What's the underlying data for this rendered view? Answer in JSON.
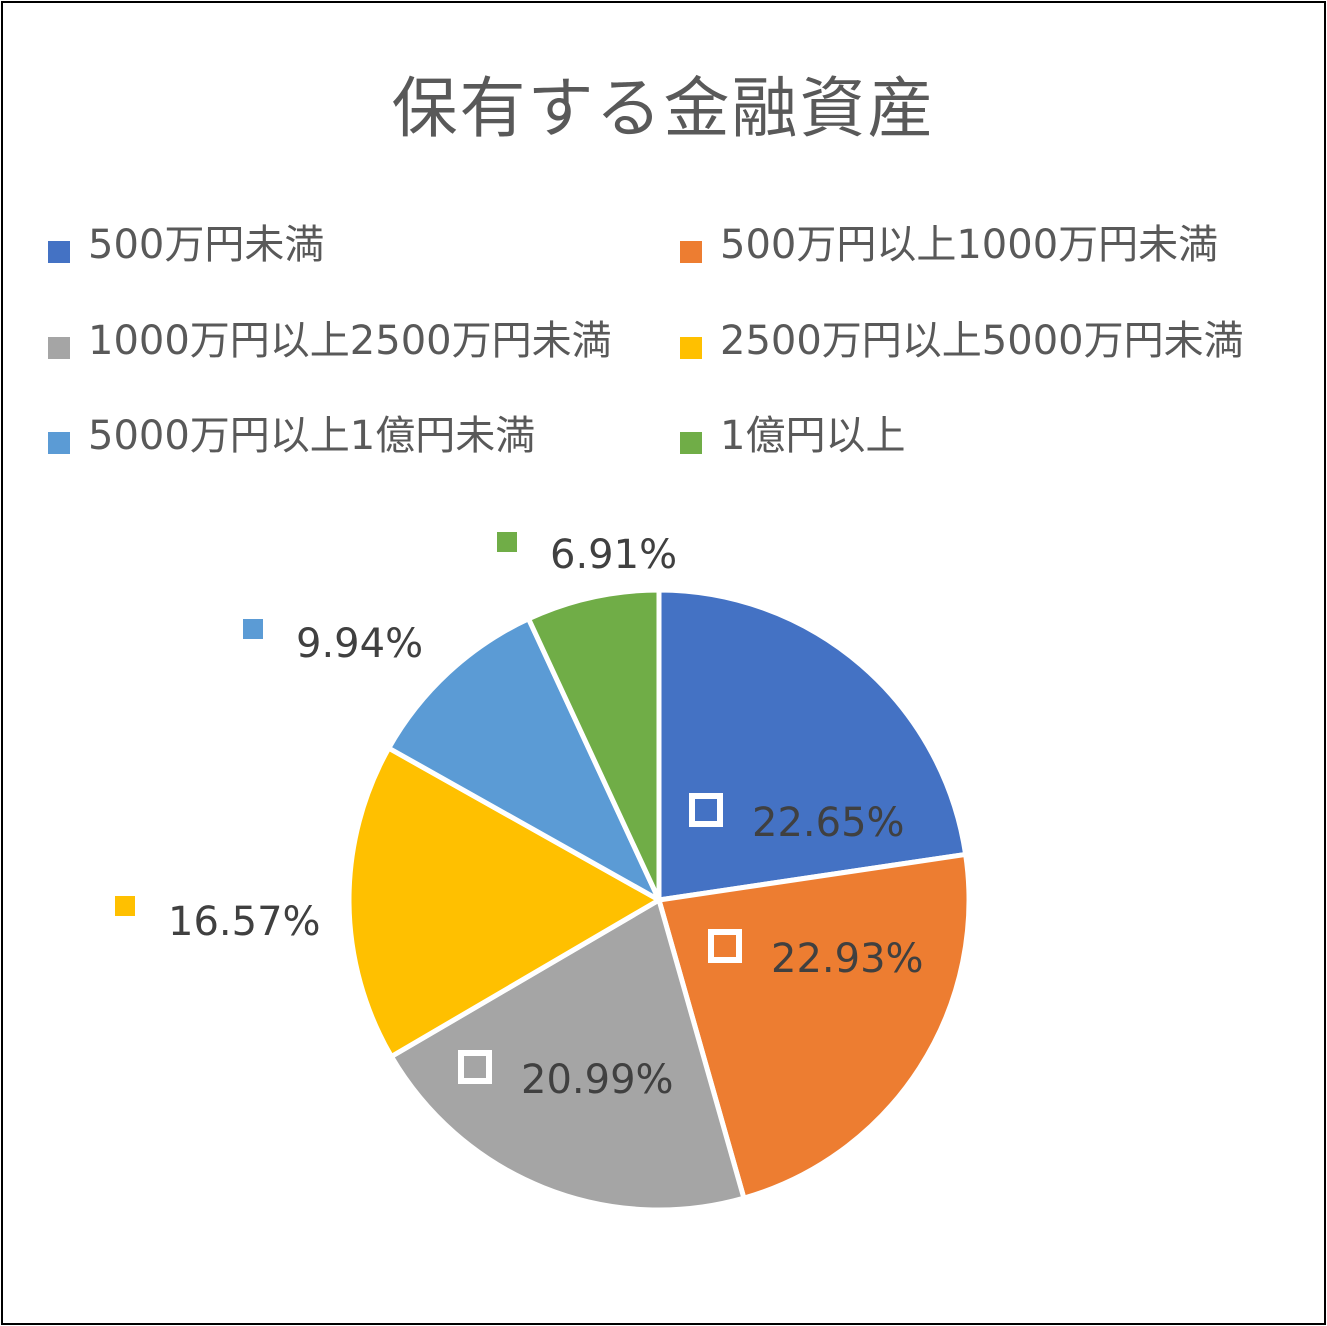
{
  "chart_data": {
    "type": "pie",
    "title": "保有する金融資産",
    "legend_position": "top",
    "categories": [
      "500万円未満",
      "500万円以上1000万円未満",
      "1000万円以上2500万円未満",
      "2500万円以上5000万円未満",
      "5000万円以上1億円未満",
      "1億円以上"
    ],
    "values": [
      22.65,
      22.93,
      20.99,
      16.57,
      9.94,
      6.91
    ],
    "labels": [
      "22.65%",
      "22.93%",
      "20.99%",
      "16.57%",
      "9.94%",
      "6.91%"
    ],
    "colors": [
      "#4472C4",
      "#ED7D31",
      "#A5A5A5",
      "#FFC000",
      "#5B9BD5",
      "#70AD47"
    ],
    "label_style": [
      "inside",
      "inside",
      "inside",
      "outside",
      "outside",
      "outside"
    ]
  }
}
